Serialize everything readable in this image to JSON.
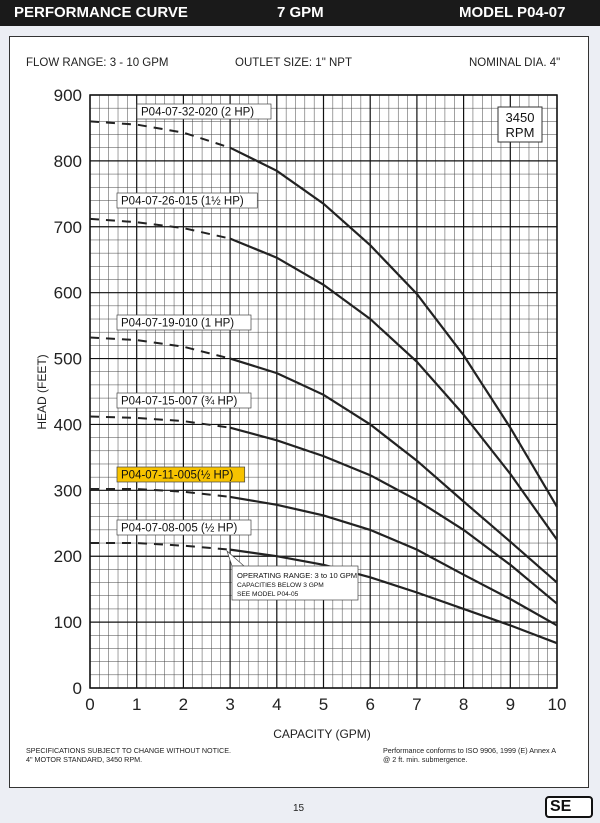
{
  "header": {
    "title": "PERFORMANCE CURVE",
    "flow_rating": "7 GPM",
    "model": "MODEL  P04-07"
  },
  "specs": {
    "flow_range": "FLOW RANGE: 3 - 10 GPM",
    "outlet": "OUTLET SIZE: 1\" NPT",
    "diameter": "NOMINAL DIA. 4\""
  },
  "chart_data": {
    "type": "line",
    "title": "",
    "xlabel": "CAPACITY (GPM)",
    "ylabel": "HEAD (FEET)",
    "xlim": [
      0,
      10
    ],
    "ylim": [
      0,
      900
    ],
    "x_ticks": [
      0,
      1,
      2,
      3,
      4,
      5,
      6,
      7,
      8,
      9,
      10
    ],
    "y_ticks": [
      0,
      100,
      200,
      300,
      400,
      500,
      600,
      700,
      800,
      900
    ],
    "grid": true,
    "speed_label": [
      "3450",
      "RPM"
    ],
    "dashed_below_x": 3,
    "series": [
      {
        "name": "P04-07-32-020 (2 HP)",
        "x": [
          0,
          1,
          2,
          3,
          4,
          5,
          6,
          7,
          8,
          9,
          10
        ],
        "y": [
          860,
          855,
          843,
          820,
          785,
          735,
          672,
          598,
          505,
          395,
          275
        ]
      },
      {
        "name": "P04-07-26-015 (1½ HP)",
        "x": [
          0,
          1,
          2,
          3,
          4,
          5,
          6,
          7,
          8,
          9,
          10
        ],
        "y": [
          712,
          707,
          698,
          682,
          653,
          612,
          560,
          495,
          415,
          325,
          225
        ]
      },
      {
        "name": "P04-07-19-010 (1 HP)",
        "x": [
          0,
          1,
          2,
          3,
          4,
          5,
          6,
          7,
          8,
          9,
          10
        ],
        "y": [
          532,
          528,
          518,
          500,
          478,
          445,
          400,
          345,
          283,
          222,
          160
        ]
      },
      {
        "name": "P04-07-15-007 (¾ HP)",
        "x": [
          0,
          1,
          2,
          3,
          4,
          5,
          6,
          7,
          8,
          9,
          10
        ],
        "y": [
          412,
          410,
          405,
          395,
          376,
          352,
          323,
          285,
          240,
          187,
          128
        ]
      },
      {
        "name": "P04-07-11-005(½ HP)",
        "highlight": true,
        "x": [
          0,
          1,
          2,
          3,
          4,
          5,
          6,
          7,
          8,
          9,
          10
        ],
        "y": [
          302,
          302,
          298,
          290,
          278,
          262,
          240,
          210,
          172,
          135,
          95
        ]
      },
      {
        "name": "P04-07-08-005 (½ HP)",
        "x": [
          0,
          1,
          2,
          3,
          4,
          5,
          6,
          7,
          8,
          9,
          10
        ],
        "y": [
          220,
          220,
          216,
          210,
          200,
          187,
          168,
          145,
          120,
          95,
          68
        ]
      }
    ],
    "annotation": [
      "OPERATING RANGE: 3 to 10 GPM",
      "CAPACITIES BELOW 3 GPM",
      "SEE MODEL P04-05"
    ]
  },
  "footer": {
    "left": [
      "SPECIFICATIONS SUBJECT TO CHANGE WITHOUT NOTICE.",
      "4\" MOTOR STANDARD, 3450 RPM."
    ],
    "right": [
      "Performance conforms to ISO 9906, 1999 (E) Annex A",
      "@ 2 ft. min. submergence."
    ],
    "page": "15",
    "logo": "SE"
  },
  "colors": {
    "curve": "#222222",
    "grid": "#444444",
    "highlight": "#f7c300",
    "header_bg": "#1a1a1a"
  }
}
